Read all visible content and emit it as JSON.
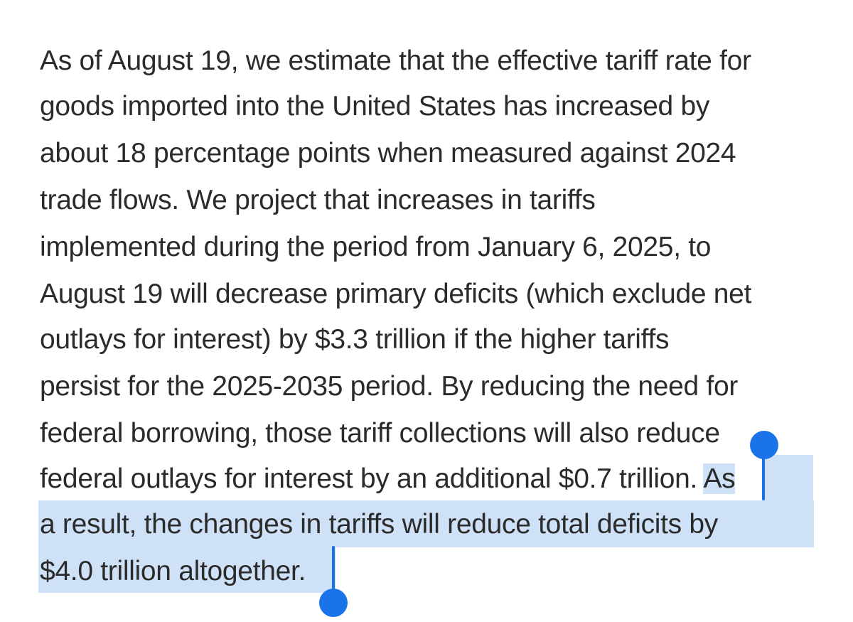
{
  "article": {
    "paragraph_lines": [
      "As of August 19, we estimate that the effective tariff rate for",
      "goods imported into the United States has increased by",
      "about 18 percentage points when measured against 2024",
      "trade flows. We project that increases in tariffs",
      "implemented during the period from January 6, 2025, to",
      "August 19 will decrease primary deficits (which exclude net",
      "outlays for interest) by $3.3 trillion if the higher tariffs",
      "persist for the 2025-2035 period. By reducing the need for",
      "federal borrowing, those tariff collections will also reduce",
      "federal outlays for interest by an additional $0.7 trillion. "
    ],
    "selection_start_fragment": "As",
    "selected_lines": [
      "a result, the changes in tariffs will reduce total deficits by",
      "$4.0 trillion altogether."
    ]
  },
  "colors": {
    "text": "#2b2b2b",
    "selection_highlight": "#cfe1f7",
    "selection_handle": "#1a73e8"
  }
}
